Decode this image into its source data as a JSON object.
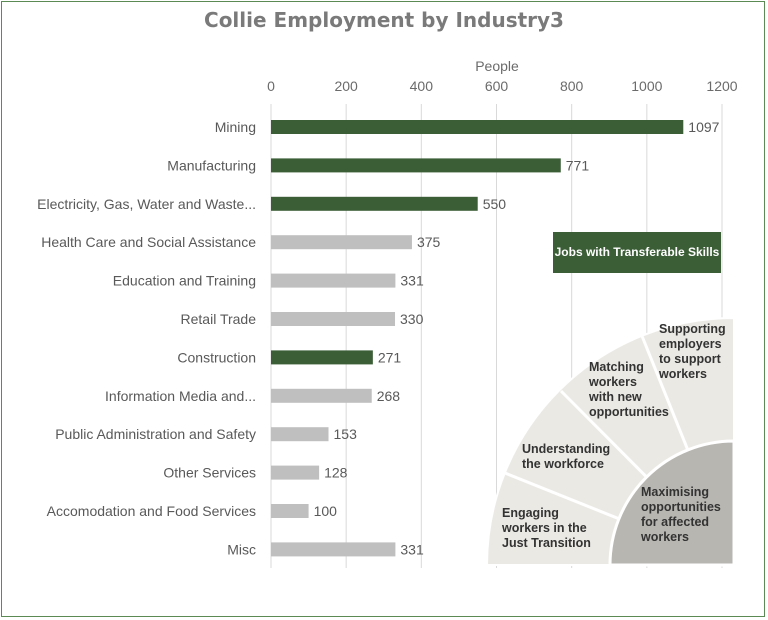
{
  "chart_data": {
    "type": "bar",
    "orientation": "horizontal",
    "title": "Collie Employment by Industry3",
    "xlabel": "People",
    "xlim": [
      0,
      1200
    ],
    "ticks": [
      "0",
      "200",
      "400",
      "600",
      "800",
      "1000",
      "1200"
    ],
    "categories": [
      "Mining",
      "Manufacturing",
      "Electricity, Gas, Water and Waste...",
      "Health Care and Social Assistance",
      "Education and Training",
      "Retail Trade",
      "Construction",
      "Information Media and...",
      "Public Administration and Safety",
      "Other Services",
      "Accomodation and Food Services",
      "Misc"
    ],
    "values": [
      1097,
      771,
      550,
      375,
      331,
      330,
      271,
      268,
      153,
      128,
      100,
      331
    ],
    "highlighted": [
      true,
      true,
      true,
      false,
      false,
      false,
      true,
      false,
      false,
      false,
      false,
      false
    ],
    "colors": {
      "highlight": "#3b5e37",
      "other": "#bfbfbf"
    },
    "legend": "Jobs with Transferable Skills",
    "grid": true
  },
  "diagram": {
    "outer_segments": [
      "Engaging workers in the Just Transition",
      "Understanding the workforce",
      "Matching workers with new opportunities",
      "Supporting employers to support workers"
    ],
    "center": "Maximising opportunities for affected workers"
  }
}
